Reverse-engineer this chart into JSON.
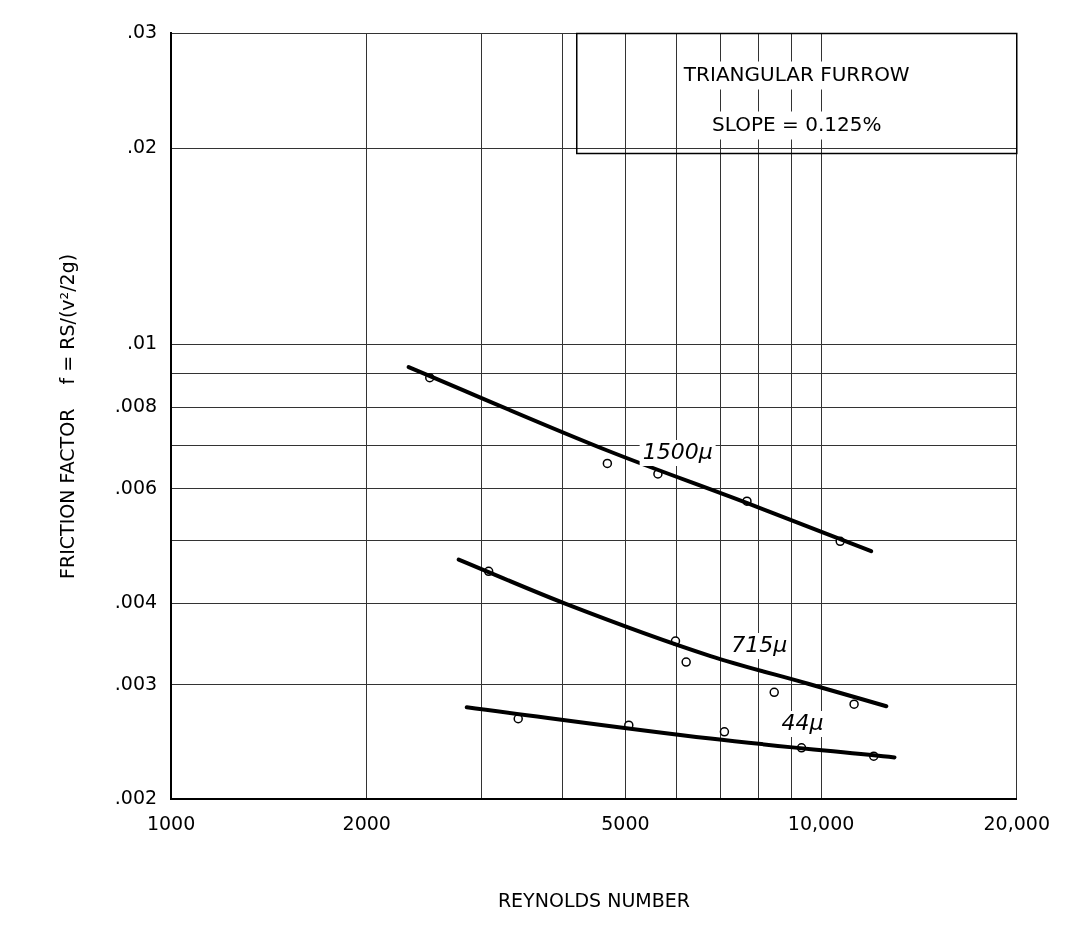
{
  "chart_data": {
    "type": "line",
    "title": "TRIANGULAR FURROW",
    "subtitle": "SLOPE = 0.125%",
    "xlabel": "REYNOLDS NUMBER",
    "ylabel": "FRICTION FACTOR    f = RS/(v²/2g)",
    "log": "xy",
    "grid": true,
    "legend": false,
    "xlim": [
      1000,
      20000
    ],
    "ylim": [
      0.002,
      0.03
    ],
    "xticks": [
      1000,
      2000,
      {
        "value": 3000,
        "label": null
      },
      {
        "value": 4000,
        "label": null
      },
      5000,
      {
        "value": 6000,
        "label": null
      },
      {
        "value": 7000,
        "label": null
      },
      {
        "value": 8000,
        "label": null
      },
      {
        "value": 9000,
        "label": null
      },
      {
        "value": 10000,
        "label": "10,000"
      },
      {
        "value": 20000,
        "label": "20,000"
      }
    ],
    "yticks": [
      {
        "value": 0.002,
        "label": ".002"
      },
      {
        "value": 0.003,
        "label": ".003"
      },
      {
        "value": 0.004,
        "label": ".004"
      },
      {
        "value": 0.005,
        "label": null
      },
      {
        "value": 0.006,
        "label": ".006"
      },
      {
        "value": 0.007,
        "label": null
      },
      {
        "value": 0.008,
        "label": ".008"
      },
      {
        "value": 0.009,
        "label": null
      },
      {
        "value": 0.01,
        "label": ".01"
      },
      {
        "value": 0.02,
        "label": ".02"
      },
      {
        "value": 0.03,
        "label": ".03"
      }
    ],
    "series": [
      {
        "type": "line",
        "name": "1500μ",
        "marker": "none",
        "color": "#000000",
        "x": [
          2320,
          4700,
          7700,
          11940
        ],
        "values": [
          0.00922,
          0.00686,
          0.0057,
          0.00481
        ]
      },
      {
        "type": "line",
        "name": "715μ",
        "marker": "none",
        "color": "#000000",
        "x": [
          2770,
          4030,
          6760,
          9550,
          12600
        ],
        "values": [
          0.00467,
          0.004,
          0.00332,
          0.00301,
          0.00278
        ]
      },
      {
        "type": "line",
        "name": "44μ",
        "marker": "none",
        "color": "#000000",
        "x": [
          2850,
          6760,
          12970
        ],
        "values": [
          0.00277,
          0.00248,
          0.00232
        ]
      },
      {
        "type": "scatter",
        "marker": "circle",
        "color": "#000000",
        "x": [
          2500,
          4690,
          5610,
          7690,
          10700
        ],
        "values": [
          0.00888,
          0.00656,
          0.00632,
          0.00574,
          0.00498
        ]
      },
      {
        "type": "scatter",
        "marker": "circle",
        "color": "#000000",
        "x": [
          3080,
          5970,
          6200,
          8470,
          11240
        ],
        "values": [
          0.00448,
          0.0035,
          0.00325,
          0.00292,
          0.0028
        ]
      },
      {
        "type": "scatter",
        "marker": "circle",
        "color": "#000000",
        "x": [
          3420,
          5060,
          7100,
          9330,
          12050
        ],
        "values": [
          0.00266,
          0.0026,
          0.00254,
          0.0024,
          0.00233
        ]
      }
    ]
  }
}
